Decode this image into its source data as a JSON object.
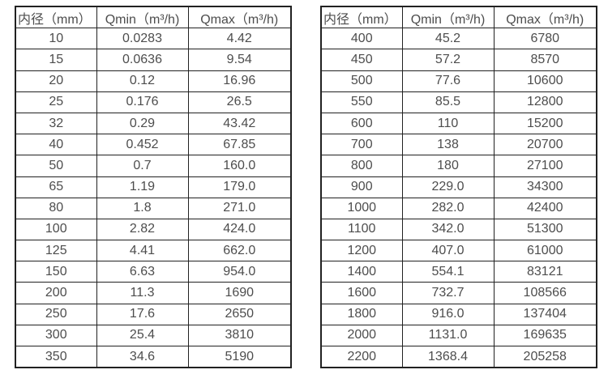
{
  "colors": {
    "background": "#ffffff",
    "border": "#212121",
    "text": "#4d4d4d"
  },
  "tables": [
    {
      "name": "flow-spec-table-small-diameters",
      "headers": [
        "内径（mm）",
        "Qmin（m³/h)",
        "Qmax（m³/h)"
      ],
      "rows": [
        [
          "10",
          "0.0283",
          "4.42"
        ],
        [
          "15",
          "0.0636",
          "9.54"
        ],
        [
          "20",
          "0.12",
          "16.96"
        ],
        [
          "25",
          "0.176",
          "26.5"
        ],
        [
          "32",
          "0.29",
          "43.42"
        ],
        [
          "40",
          "0.452",
          "67.85"
        ],
        [
          "50",
          "0.7",
          "160.0"
        ],
        [
          "65",
          "1.19",
          "179.0"
        ],
        [
          "80",
          "1.8",
          "271.0"
        ],
        [
          "100",
          "2.82",
          "424.0"
        ],
        [
          "125",
          "4.41",
          "662.0"
        ],
        [
          "150",
          "6.63",
          "954.0"
        ],
        [
          "200",
          "11.3",
          "1690"
        ],
        [
          "250",
          "17.6",
          "2650"
        ],
        [
          "300",
          "25.4",
          "3810"
        ],
        [
          "350",
          "34.6",
          "5190"
        ]
      ]
    },
    {
      "name": "flow-spec-table-large-diameters",
      "headers": [
        "内径（mm）",
        "Qmin（m³/h)",
        "Qmax（m³/h)"
      ],
      "rows": [
        [
          "400",
          "45.2",
          "6780"
        ],
        [
          "450",
          "57.2",
          "8570"
        ],
        [
          "500",
          "77.6",
          "10600"
        ],
        [
          "550",
          "85.5",
          "12800"
        ],
        [
          "600",
          "110",
          "15200"
        ],
        [
          "700",
          "138",
          "20700"
        ],
        [
          "800",
          "180",
          "27100"
        ],
        [
          "900",
          "229.0",
          "34300"
        ],
        [
          "1000",
          "282.0",
          "42400"
        ],
        [
          "1100",
          "342.0",
          "51300"
        ],
        [
          "1200",
          "407.0",
          "61000"
        ],
        [
          "1400",
          "554.1",
          "83121"
        ],
        [
          "1600",
          "732.7",
          "108566"
        ],
        [
          "1800",
          "916.0",
          "137404"
        ],
        [
          "2000",
          "1131.0",
          "169635"
        ],
        [
          "2200",
          "1368.4",
          "205258"
        ]
      ]
    }
  ]
}
